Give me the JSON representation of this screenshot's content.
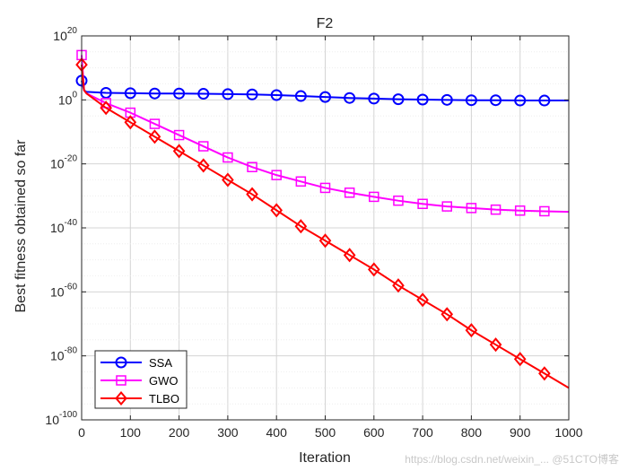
{
  "chart_data": {
    "type": "line",
    "title": "F2",
    "xlabel": "Iteration",
    "ylabel": "Best fitness obtained so far",
    "xlim": [
      0,
      1000
    ],
    "ylim_log10": [
      -100,
      20
    ],
    "yscale": "log",
    "grid": true,
    "legend_position": "bottom-left",
    "x_ticks": [
      0,
      100,
      200,
      300,
      400,
      500,
      600,
      700,
      800,
      900,
      1000
    ],
    "y_tick_exponents": [
      -100,
      -80,
      -60,
      -40,
      -20,
      0,
      20
    ],
    "y_tick_base": "10",
    "x_marker_positions": [
      0,
      50,
      100,
      150,
      200,
      250,
      300,
      350,
      400,
      450,
      500,
      550,
      600,
      650,
      700,
      750,
      800,
      850,
      900,
      950
    ],
    "series": [
      {
        "name": "SSA",
        "color": "#0000ff",
        "marker": "circle",
        "x": [
          0,
          5,
          10,
          50,
          100,
          150,
          200,
          250,
          300,
          350,
          400,
          450,
          500,
          550,
          600,
          650,
          700,
          750,
          800,
          850,
          900,
          950,
          1000
        ],
        "log10_y": [
          6,
          3,
          2.5,
          2.2,
          2.1,
          2.0,
          2.0,
          1.9,
          1.8,
          1.7,
          1.5,
          1.2,
          0.9,
          0.6,
          0.4,
          0.2,
          0.1,
          0.0,
          -0.1,
          -0.1,
          -0.2,
          -0.2,
          -0.2
        ]
      },
      {
        "name": "GWO",
        "color": "#ff00ff",
        "marker": "square",
        "x": [
          0,
          5,
          10,
          50,
          100,
          150,
          200,
          250,
          300,
          350,
          400,
          450,
          500,
          550,
          600,
          650,
          700,
          750,
          800,
          850,
          900,
          950,
          1000
        ],
        "log10_y": [
          14,
          3,
          2,
          -1,
          -4,
          -7.5,
          -11,
          -14.5,
          -18,
          -21,
          -23.5,
          -25.5,
          -27.5,
          -29,
          -30.3,
          -31.5,
          -32.5,
          -33.3,
          -33.8,
          -34.3,
          -34.6,
          -34.8,
          -35
        ]
      },
      {
        "name": "TLBO",
        "color": "#ff0000",
        "marker": "diamond",
        "x": [
          0,
          5,
          10,
          50,
          100,
          150,
          200,
          250,
          300,
          350,
          400,
          450,
          500,
          550,
          600,
          650,
          700,
          750,
          800,
          850,
          900,
          950,
          1000
        ],
        "log10_y": [
          11,
          3,
          2,
          -2.5,
          -7,
          -11.5,
          -16,
          -20.5,
          -25,
          -29.5,
          -34.5,
          -39.5,
          -44,
          -48.5,
          -53,
          -58,
          -62.5,
          -67,
          -72,
          -76.5,
          -81,
          -85.5,
          -90
        ]
      }
    ]
  },
  "watermark": "https://blog.csdn.net/weixin_... @51CTO博客"
}
